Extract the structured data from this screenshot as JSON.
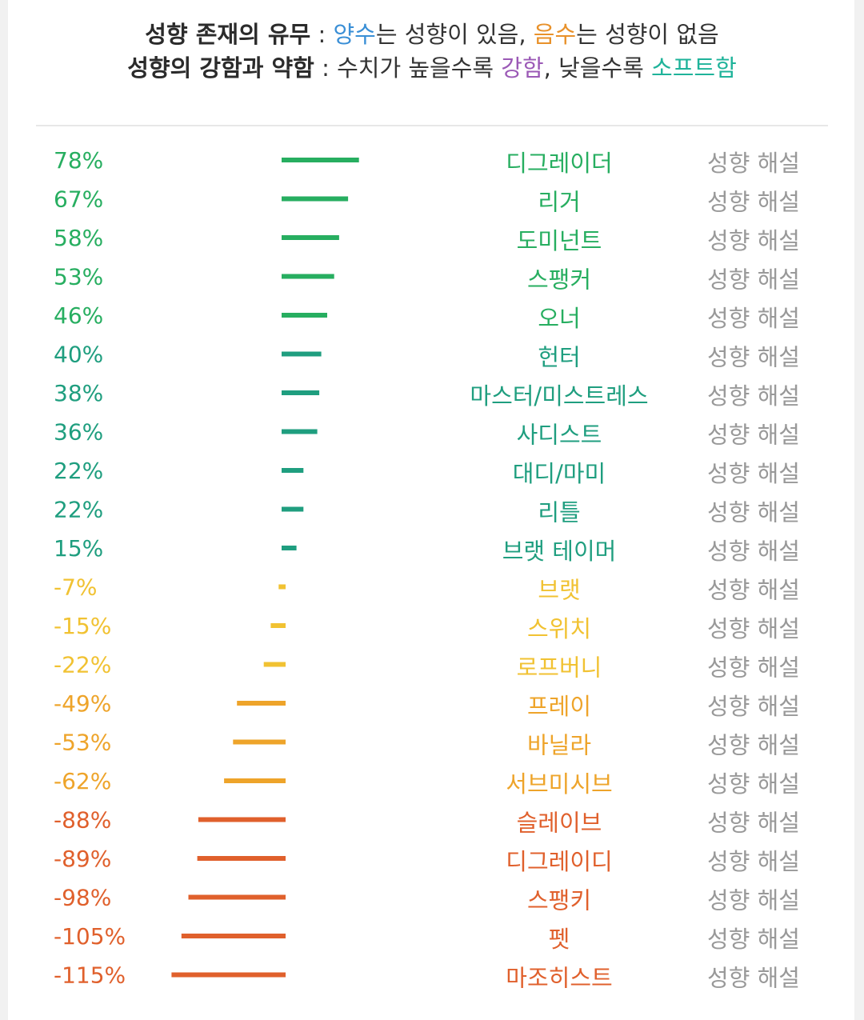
{
  "legend": {
    "line1": {
      "label": "성향 존재의 유무",
      "sep": " : ",
      "positive_word": "양수",
      "positive_rest": "는 성향이 있음, ",
      "negative_word": "음수",
      "negative_rest": "는 성향이 없음"
    },
    "line2": {
      "label": "성향의 강함과 약함",
      "sep": " : ",
      "text1": "수치가 높을수록 ",
      "strong_word": "강함",
      "text2": ", 낮을수록 ",
      "soft_word": "소프트함"
    },
    "colors": {
      "positive_word": "#3a8fd6",
      "negative_word": "#e8912a",
      "strong_word": "#9b59b6",
      "soft_word": "#1fb39a"
    }
  },
  "chart_data": {
    "type": "bar",
    "orientation": "horizontal-diverging",
    "categories": [
      "디그레이더",
      "리거",
      "도미넌트",
      "스팽커",
      "오너",
      "헌터",
      "마스터/미스트레스",
      "사디스트",
      "대디/마미",
      "리틀",
      "브랫 테이머",
      "브랫",
      "스위치",
      "로프버니",
      "프레이",
      "바닐라",
      "서브미시브",
      "슬레이브",
      "디그레이디",
      "스팽키",
      "펫",
      "마조히스트"
    ],
    "values": [
      78,
      67,
      58,
      53,
      46,
      40,
      38,
      36,
      22,
      22,
      15,
      -7,
      -15,
      -22,
      -49,
      -53,
      -62,
      -88,
      -89,
      -98,
      -105,
      -115
    ],
    "value_labels": [
      "78%",
      "67%",
      "58%",
      "53%",
      "46%",
      "40%",
      "38%",
      "36%",
      "22%",
      "22%",
      "15%",
      "-7%",
      "-15%",
      "-22%",
      "-49%",
      "-53%",
      "-62%",
      "-88%",
      "-89%",
      "-98%",
      "-105%",
      "-115%"
    ],
    "colors": [
      "#27ae60",
      "#27ae60",
      "#27ae60",
      "#27ae60",
      "#27ae60",
      "#1f9e7f",
      "#1f9e7f",
      "#1f9e7f",
      "#1f9e7f",
      "#1f9e7f",
      "#1f9e7f",
      "#f1c232",
      "#f1c232",
      "#f1c232",
      "#eea42a",
      "#eea42a",
      "#eea42a",
      "#e0602c",
      "#e0602c",
      "#e0602c",
      "#e0602c",
      "#e0602c"
    ],
    "link_label": "성향 해설",
    "link_color": "#999999"
  }
}
